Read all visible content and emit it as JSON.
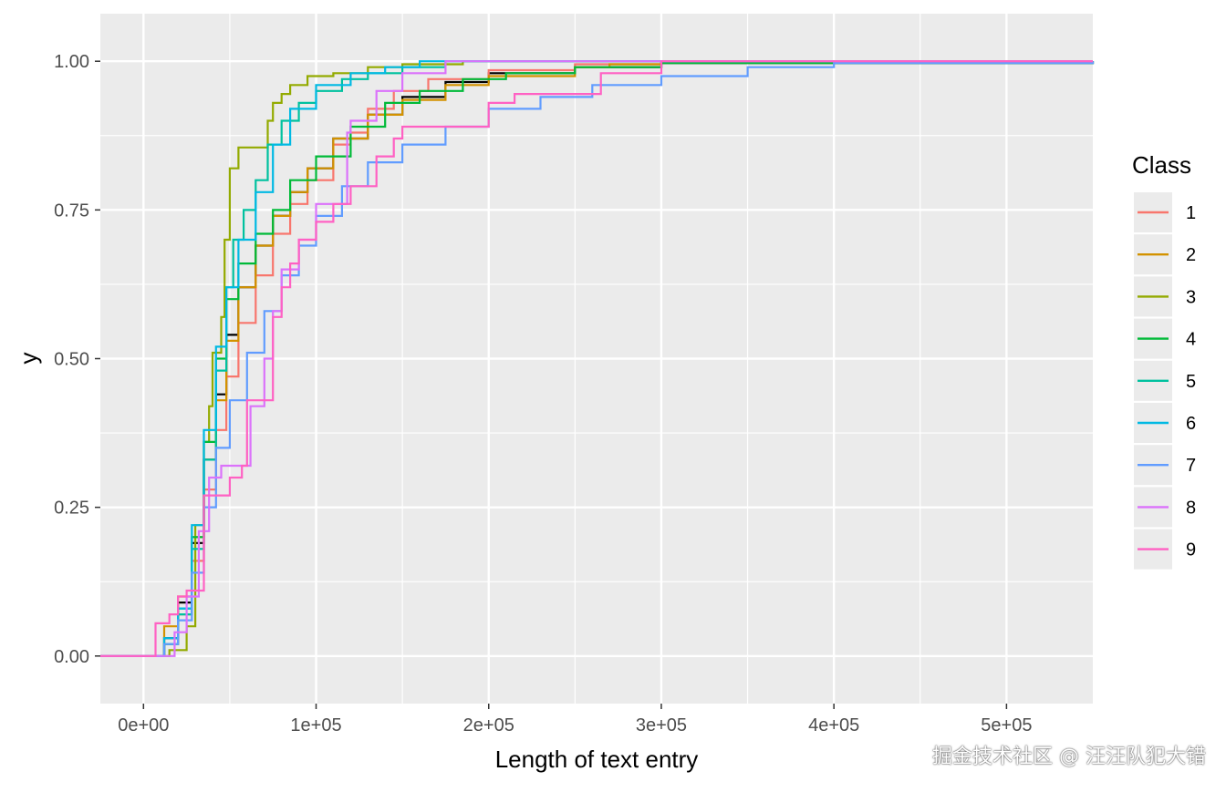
{
  "chart_data": {
    "type": "line",
    "subtype": "step-ecdf",
    "title": "",
    "xlabel": "Length of text entry",
    "ylabel": "y",
    "xlim": [
      -25000,
      550000
    ],
    "ylim": [
      -0.08,
      1.08
    ],
    "x_ticks": [
      0,
      100000,
      200000,
      300000,
      400000,
      500000
    ],
    "x_tick_labels": [
      "0e+00",
      "1e+05",
      "2e+05",
      "3e+05",
      "4e+05",
      "5e+05"
    ],
    "y_ticks": [
      0,
      0.25,
      0.5,
      0.75,
      1
    ],
    "y_tick_labels": [
      "0.00",
      "0.25",
      "0.50",
      "0.75",
      "1.00"
    ],
    "grid": true,
    "panel_background": "#ebebeb",
    "legend_title": "Class",
    "legend_position": "right",
    "overall": {
      "color": "#000000",
      "x": [
        -25000,
        0,
        12000,
        20000,
        28000,
        35000,
        42000,
        48000,
        55000,
        65000,
        75000,
        85000,
        95000,
        110000,
        130000,
        150000,
        175000,
        200000,
        250000,
        300000,
        550000
      ],
      "y": [
        0,
        0,
        0.03,
        0.09,
        0.19,
        0.33,
        0.44,
        0.54,
        0.62,
        0.69,
        0.74,
        0.78,
        0.82,
        0.87,
        0.91,
        0.94,
        0.965,
        0.98,
        0.99,
        0.997,
        1
      ]
    },
    "series": [
      {
        "name": "1",
        "color": "#F8766D",
        "x": [
          -25000,
          0,
          12000,
          20000,
          28000,
          35000,
          42000,
          48000,
          55000,
          65000,
          75000,
          85000,
          95000,
          110000,
          120000,
          130000,
          145000,
          165000,
          200000,
          250000,
          300000,
          550000
        ],
        "y": [
          0,
          0,
          0.02,
          0.07,
          0.16,
          0.28,
          0.38,
          0.47,
          0.56,
          0.64,
          0.71,
          0.76,
          0.8,
          0.86,
          0.88,
          0.92,
          0.95,
          0.97,
          0.985,
          0.995,
          1,
          1
        ]
      },
      {
        "name": "2",
        "color": "#D39200",
        "x": [
          -25000,
          0,
          12000,
          20000,
          28000,
          35000,
          42000,
          48000,
          55000,
          65000,
          75000,
          85000,
          95000,
          110000,
          130000,
          150000,
          175000,
          200000,
          250000,
          270000,
          300000,
          550000
        ],
        "y": [
          0,
          0,
          0.05,
          0.1,
          0.2,
          0.33,
          0.43,
          0.53,
          0.62,
          0.69,
          0.74,
          0.78,
          0.82,
          0.87,
          0.91,
          0.935,
          0.96,
          0.975,
          0.99,
          0.995,
          1,
          1
        ]
      },
      {
        "name": "3",
        "color": "#93AA00",
        "x": [
          -25000,
          0,
          15000,
          25000,
          30000,
          35000,
          38000,
          40000,
          45000,
          47000,
          50000,
          55000,
          65000,
          72000,
          75000,
          80000,
          85000,
          95000,
          110000,
          130000,
          150000,
          185000,
          550000
        ],
        "y": [
          0,
          0,
          0.01,
          0.05,
          0.22,
          0.36,
          0.42,
          0.51,
          0.57,
          0.7,
          0.82,
          0.855,
          0.855,
          0.9,
          0.93,
          0.945,
          0.96,
          0.975,
          0.98,
          0.99,
          0.995,
          1,
          1
        ]
      },
      {
        "name": "4",
        "color": "#00BA38",
        "x": [
          -25000,
          0,
          12000,
          20000,
          28000,
          35000,
          42000,
          48000,
          55000,
          65000,
          75000,
          85000,
          100000,
          120000,
          140000,
          160000,
          185000,
          210000,
          250000,
          300000,
          550000
        ],
        "y": [
          0,
          0,
          0.02,
          0.08,
          0.2,
          0.36,
          0.5,
          0.6,
          0.66,
          0.71,
          0.75,
          0.8,
          0.84,
          0.89,
          0.93,
          0.95,
          0.97,
          0.98,
          0.99,
          0.997,
          1
        ]
      },
      {
        "name": "5",
        "color": "#00C19F",
        "x": [
          -25000,
          0,
          12000,
          20000,
          28000,
          35000,
          42000,
          48000,
          52000,
          58000,
          65000,
          72000,
          80000,
          90000,
          100000,
          115000,
          130000,
          150000,
          175000,
          550000
        ],
        "y": [
          0,
          0,
          0.02,
          0.07,
          0.18,
          0.33,
          0.48,
          0.62,
          0.7,
          0.75,
          0.8,
          0.86,
          0.9,
          0.93,
          0.95,
          0.97,
          0.98,
          0.99,
          1,
          1
        ]
      },
      {
        "name": "6",
        "color": "#00B9E3",
        "x": [
          -25000,
          0,
          12000,
          20000,
          28000,
          35000,
          42000,
          48000,
          55000,
          65000,
          75000,
          85000,
          100000,
          120000,
          140000,
          160000,
          550000
        ],
        "y": [
          0,
          0,
          0.03,
          0.08,
          0.22,
          0.38,
          0.52,
          0.62,
          0.7,
          0.78,
          0.86,
          0.92,
          0.96,
          0.98,
          0.99,
          1,
          1
        ]
      },
      {
        "name": "7",
        "color": "#619CFF",
        "x": [
          -25000,
          0,
          12000,
          20000,
          28000,
          35000,
          42000,
          50000,
          60000,
          70000,
          80000,
          90000,
          100000,
          115000,
          130000,
          150000,
          175000,
          200000,
          230000,
          260000,
          300000,
          350000,
          400000,
          550000
        ],
        "y": [
          0,
          0,
          0.02,
          0.06,
          0.14,
          0.25,
          0.35,
          0.43,
          0.51,
          0.58,
          0.64,
          0.69,
          0.74,
          0.79,
          0.83,
          0.86,
          0.89,
          0.92,
          0.94,
          0.96,
          0.975,
          0.99,
          0.997,
          1
        ]
      },
      {
        "name": "8",
        "color": "#DB72FB",
        "x": [
          -25000,
          0,
          12000,
          18000,
          25000,
          32000,
          38000,
          45000,
          55000,
          62000,
          70000,
          75000,
          80000,
          90000,
          100000,
          118000,
          120000,
          130000,
          135000,
          150000,
          175000,
          550000
        ],
        "y": [
          0,
          0,
          0,
          0.04,
          0.1,
          0.21,
          0.3,
          0.32,
          0.32,
          0.42,
          0.5,
          0.58,
          0.65,
          0.7,
          0.76,
          0.88,
          0.9,
          0.9,
          0.95,
          0.98,
          1,
          1
        ]
      },
      {
        "name": "9",
        "color": "#FF61C3",
        "x": [
          -25000,
          0,
          7000,
          15000,
          20000,
          25000,
          35000,
          50000,
          57000,
          60000,
          75000,
          80000,
          85000,
          90000,
          100000,
          110000,
          120000,
          135000,
          145000,
          150000,
          175000,
          200000,
          215000,
          265000,
          300000,
          550000
        ],
        "y": [
          0,
          0,
          0.055,
          0.07,
          0.1,
          0.11,
          0.27,
          0.3,
          0.32,
          0.43,
          0.57,
          0.62,
          0.66,
          0.7,
          0.73,
          0.76,
          0.79,
          0.84,
          0.87,
          0.89,
          0.89,
          0.93,
          0.945,
          0.98,
          1,
          1
        ]
      }
    ]
  },
  "watermark": "掘金技术社区 @ 汪汪队犯大错"
}
